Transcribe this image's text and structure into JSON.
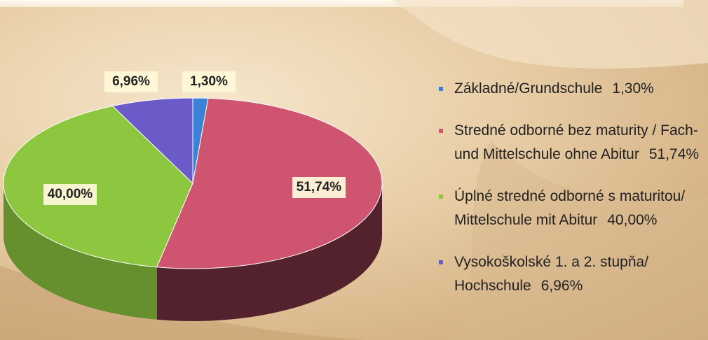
{
  "chart_data": {
    "type": "pie",
    "categories": [
      "Základné/Grundschule",
      "Stredné odborné bez maturity / Fach- und Mittelschule ohne Abitur",
      "Úplné stredné odborné s maturitou/ Mittelschule mit Abitur",
      "Vysokoškolské 1. a 2. stupňa/ Hochschule"
    ],
    "values": [
      1.3,
      51.74,
      40.0,
      6.96
    ],
    "value_labels": [
      "1,30%",
      "51,74%",
      "40,00%",
      "6,96%"
    ],
    "colors": [
      "#3b82d6",
      "#cf5470",
      "#8dc63f",
      "#6b5bc9"
    ]
  }
}
